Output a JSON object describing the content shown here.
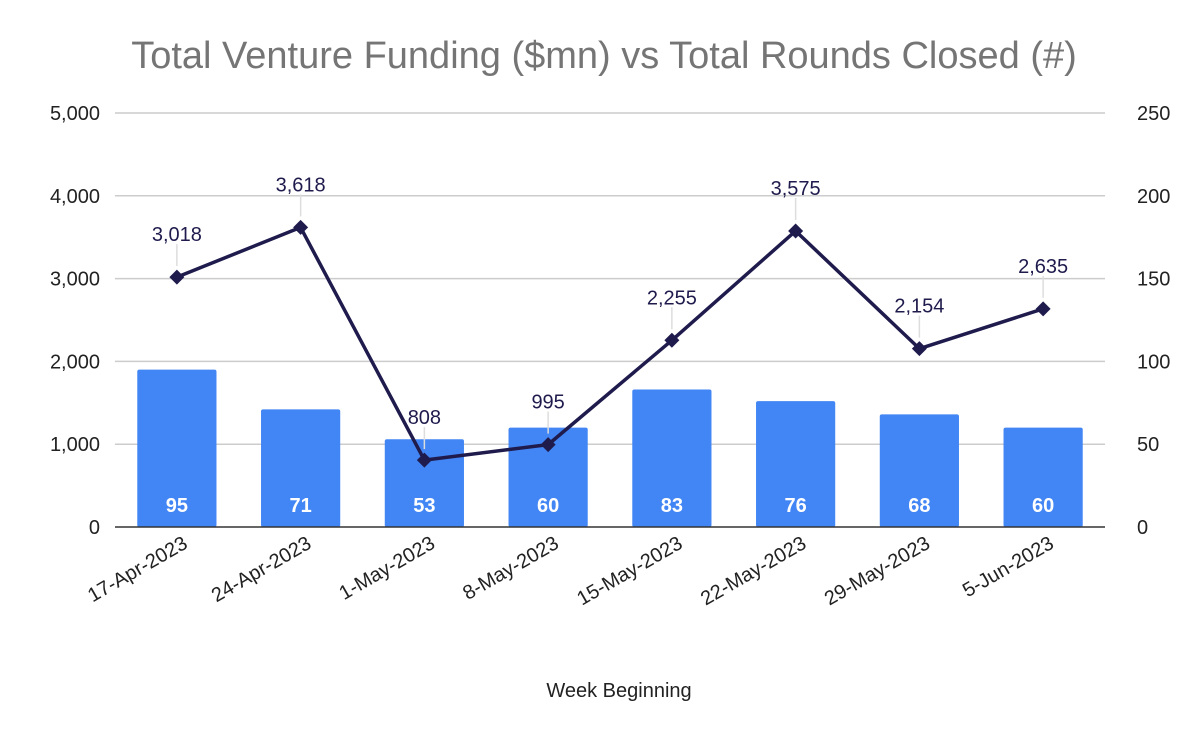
{
  "chart_data": {
    "type": "bar",
    "title": "Total Venture Funding ($mn) vs Total Rounds Closed (#)",
    "xlabel": "Week Beginning",
    "ylabel": "",
    "ylabel_right": "",
    "categories": [
      "17-Apr-2023",
      "24-Apr-2023",
      "1-May-2023",
      "8-May-2023",
      "15-May-2023",
      "22-May-2023",
      "29-May-2023",
      "5-Jun-2023"
    ],
    "series": [
      {
        "name": "Total Rounds Closed (#)",
        "type": "bar",
        "axis": "right",
        "color": "#4285f4",
        "values": [
          95,
          71,
          53,
          60,
          83,
          76,
          68,
          60
        ],
        "labels": [
          "95",
          "71",
          "53",
          "60",
          "83",
          "76",
          "68",
          "60"
        ]
      },
      {
        "name": "Total Venture Funding ($mn)",
        "type": "line",
        "axis": "left",
        "color": "#1f1b4d",
        "marker": "diamond",
        "values": [
          3018,
          3618,
          808,
          995,
          2255,
          3575,
          2154,
          2635
        ],
        "labels": [
          "3,018",
          "3,618",
          "808",
          "995",
          "2,255",
          "3,575",
          "2,154",
          "2,635"
        ]
      }
    ],
    "ylim": [
      0,
      5000
    ],
    "ylim_right": [
      0,
      250
    ],
    "yticks": [
      "0",
      "1,000",
      "2,000",
      "3,000",
      "4,000",
      "5,000"
    ],
    "yticks_right": [
      "0",
      "50",
      "100",
      "150",
      "200",
      "250"
    ],
    "grid": true,
    "legend": "none"
  }
}
